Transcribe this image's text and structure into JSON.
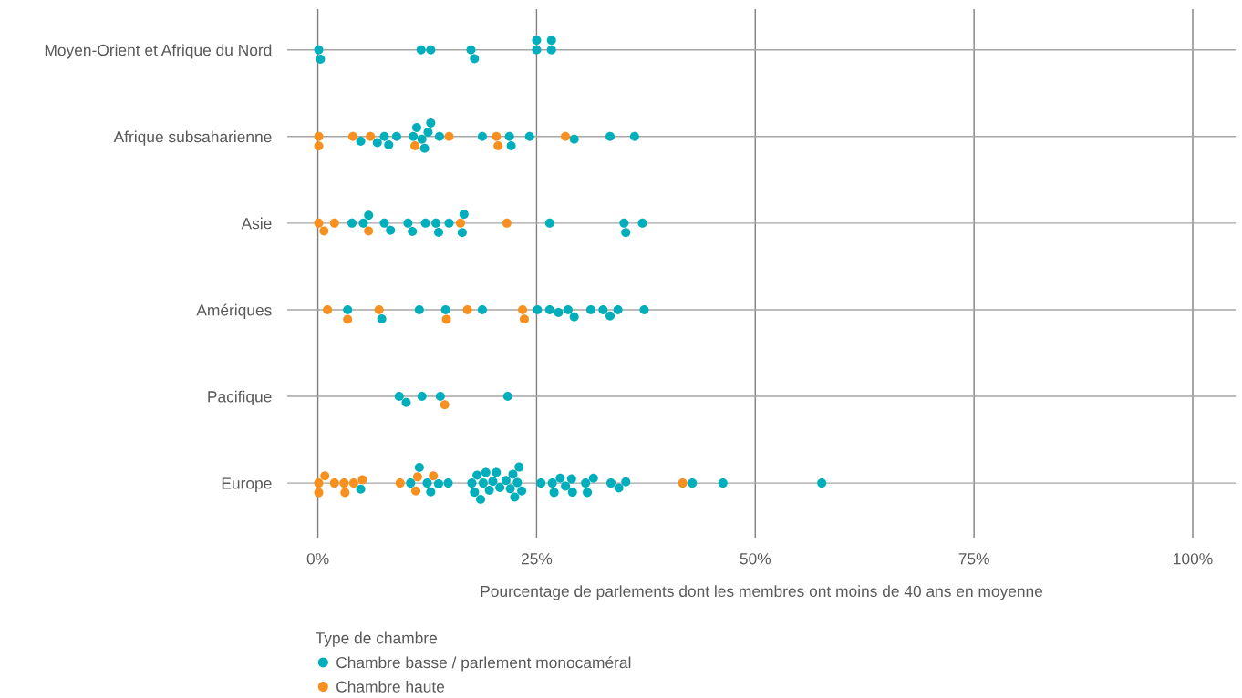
{
  "chart_data": {
    "type": "scatter",
    "orientation": "horizontal",
    "xlabel": "Pourcentage de parlements dont les membres ont moins de 40 ans en moyenne",
    "legend_title": "Type de chambre",
    "legend": "bottom",
    "grid": true,
    "marker": "circle",
    "categories": [
      "Moyen-Orient et Afrique du Nord",
      "Afrique subsaharienne",
      "Asie",
      "Amériques",
      "Pacifique",
      "Europe"
    ],
    "xlim": [
      -3.5,
      104.9
    ],
    "xticks": [
      {
        "value": 0,
        "label": "0%"
      },
      {
        "value": 25,
        "label": "25%"
      },
      {
        "value": 50,
        "label": "50%"
      },
      {
        "value": 75,
        "label": "75%"
      },
      {
        "value": 100,
        "label": "100%"
      }
    ],
    "series": [
      {
        "name": "Chambre basse / parlement monocaméral",
        "color": "#00afbb",
        "x": [
          "Moyen-Orient et Afrique du Nord",
          "Moyen-Orient et Afrique du Nord",
          "Moyen-Orient et Afrique du Nord",
          "Moyen-Orient et Afrique du Nord",
          "Moyen-Orient et Afrique du Nord",
          "Moyen-Orient et Afrique du Nord",
          "Moyen-Orient et Afrique du Nord",
          "Moyen-Orient et Afrique du Nord",
          "Moyen-Orient et Afrique du Nord",
          "Moyen-Orient et Afrique du Nord",
          "Afrique subsaharienne",
          "Afrique subsaharienne",
          "Afrique subsaharienne",
          "Afrique subsaharienne",
          "Afrique subsaharienne",
          "Afrique subsaharienne",
          "Afrique subsaharienne",
          "Afrique subsaharienne",
          "Afrique subsaharienne",
          "Afrique subsaharienne",
          "Afrique subsaharienne",
          "Afrique subsaharienne",
          "Afrique subsaharienne",
          "Afrique subsaharienne",
          "Afrique subsaharienne",
          "Afrique subsaharienne",
          "Afrique subsaharienne",
          "Afrique subsaharienne",
          "Afrique subsaharienne",
          "Asie",
          "Asie",
          "Asie",
          "Asie",
          "Asie",
          "Asie",
          "Asie",
          "Asie",
          "Asie",
          "Asie",
          "Asie",
          "Asie",
          "Asie",
          "Asie",
          "Asie",
          "Asie",
          "Asie",
          "Amériques",
          "Amériques",
          "Amériques",
          "Amériques",
          "Amériques",
          "Amériques",
          "Amériques",
          "Amériques",
          "Amériques",
          "Amériques",
          "Amériques",
          "Amériques",
          "Amériques",
          "Amériques",
          "Amériques",
          "Pacifique",
          "Pacifique",
          "Pacifique",
          "Pacifique",
          "Pacifique",
          "Europe",
          "Europe",
          "Europe",
          "Europe",
          "Europe",
          "Europe",
          "Europe",
          "Europe",
          "Europe",
          "Europe",
          "Europe",
          "Europe",
          "Europe",
          "Europe",
          "Europe",
          "Europe",
          "Europe",
          "Europe",
          "Europe",
          "Europe",
          "Europe",
          "Europe",
          "Europe",
          "Europe",
          "Europe",
          "Europe",
          "Europe",
          "Europe",
          "Europe",
          "Europe",
          "Europe",
          "Europe",
          "Europe",
          "Europe",
          "Europe",
          "Europe",
          "Europe",
          "Europe",
          "Europe",
          "Europe"
        ],
        "values": [
          0.1,
          0.3,
          11.8,
          12.9,
          17.5,
          17.9,
          25.0,
          25.0,
          26.7,
          26.7,
          4.9,
          6.8,
          7.6,
          8.1,
          9.0,
          10.9,
          11.3,
          11.9,
          12.2,
          12.6,
          12.9,
          13.9,
          18.8,
          21.9,
          22.1,
          24.2,
          29.3,
          33.4,
          36.2,
          3.9,
          5.2,
          5.8,
          7.6,
          8.3,
          10.3,
          10.8,
          12.3,
          13.5,
          13.8,
          15.0,
          16.5,
          16.7,
          26.5,
          35.0,
          35.2,
          37.1,
          3.4,
          7.3,
          11.6,
          14.6,
          18.8,
          25.1,
          26.5,
          27.5,
          28.6,
          29.3,
          31.2,
          32.6,
          33.4,
          34.3,
          37.3,
          9.3,
          10.1,
          11.9,
          14.0,
          21.7,
          4.9,
          10.6,
          11.6,
          12.5,
          12.9,
          13.8,
          14.9,
          17.6,
          17.9,
          18.2,
          18.6,
          18.9,
          19.2,
          19.6,
          20.0,
          20.4,
          20.8,
          21.5,
          22.0,
          22.3,
          22.5,
          22.8,
          23.0,
          23.3,
          25.5,
          26.8,
          27.0,
          27.7,
          28.3,
          29.0,
          29.1,
          30.6,
          30.8,
          31.5,
          33.5,
          34.4,
          35.2,
          42.8,
          46.3,
          57.6
        ]
      },
      {
        "name": "Chambre haute",
        "color": "#f7901e",
        "x": [
          "Afrique subsaharienne",
          "Afrique subsaharienne",
          "Afrique subsaharienne",
          "Afrique subsaharienne",
          "Afrique subsaharienne",
          "Afrique subsaharienne",
          "Afrique subsaharienne",
          "Afrique subsaharienne",
          "Afrique subsaharienne",
          "Asie",
          "Asie",
          "Asie",
          "Asie",
          "Asie",
          "Asie",
          "Amériques",
          "Amériques",
          "Amériques",
          "Amériques",
          "Amériques",
          "Amériques",
          "Amériques",
          "Pacifique",
          "Europe",
          "Europe",
          "Europe",
          "Europe",
          "Europe",
          "Europe",
          "Europe",
          "Europe",
          "Europe",
          "Europe",
          "Europe",
          "Europe",
          "Europe"
        ],
        "values": [
          0.1,
          0.1,
          4.0,
          6.0,
          11.1,
          15.0,
          20.4,
          20.6,
          28.3,
          0.1,
          0.7,
          1.9,
          5.8,
          16.3,
          21.6,
          1.1,
          3.4,
          7.0,
          14.7,
          17.1,
          23.4,
          23.6,
          14.5,
          0.1,
          0.1,
          0.8,
          1.9,
          3.0,
          3.1,
          4.1,
          5.1,
          9.4,
          11.2,
          11.4,
          13.2,
          41.7
        ]
      }
    ]
  }
}
